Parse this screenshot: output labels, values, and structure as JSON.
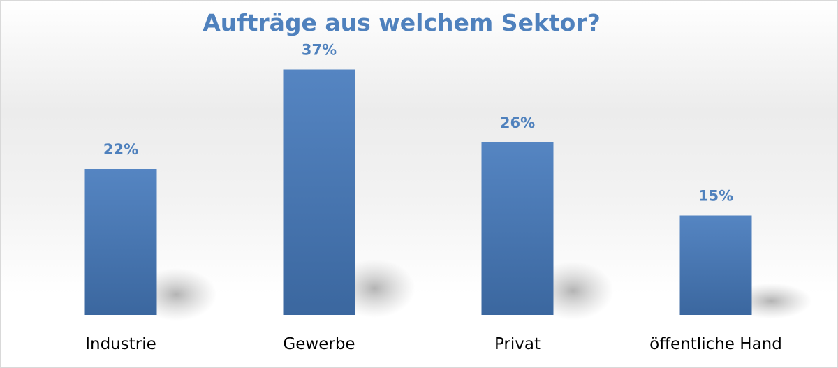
{
  "chart_data": {
    "type": "bar",
    "title": "Aufträge aus welchem Sektor?",
    "categories": [
      "Industrie",
      "Gewerbe",
      "Privat",
      "öffentliche Hand"
    ],
    "values": [
      22,
      37,
      26,
      15
    ],
    "value_labels": [
      "22%",
      "37%",
      "26%",
      "15%"
    ],
    "unit": "%",
    "ylim": [
      0,
      40
    ],
    "grid": false,
    "legend": "none",
    "bar_color": "#4f81bd",
    "label_color": "#4f81bd",
    "category_color": "#000000"
  }
}
